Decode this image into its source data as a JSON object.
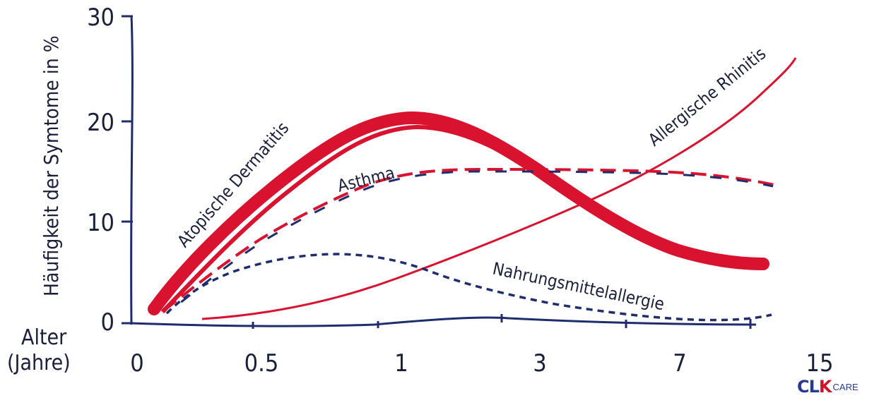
{
  "chart_data": {
    "type": "line",
    "ylabel": "Häufigkeit der Symtome in %",
    "xlabel": "Alter (Jahre)",
    "xlabel_line1": "Alter",
    "xlabel_line2": "(Jahre)",
    "ylim": [
      0,
      30
    ],
    "yticks": [
      "0",
      "10",
      "20",
      "30"
    ],
    "x_tick_labels": [
      "0",
      "0.5",
      "1",
      "3",
      "7",
      "15"
    ],
    "grid": false,
    "series": [
      {
        "name": "Atopische Dermatitis",
        "color": "#d9122f",
        "style": "thick",
        "points": [
          [
            0.14,
            1.0
          ],
          [
            0.3,
            6.0
          ],
          [
            0.5,
            12.0
          ],
          [
            0.7,
            16.8
          ],
          [
            0.9,
            19.2
          ],
          [
            1.0,
            19.8
          ],
          [
            1.15,
            19.7
          ],
          [
            1.4,
            18.6
          ],
          [
            2.0,
            15.8
          ],
          [
            3.0,
            13.0
          ],
          [
            4.5,
            10.0
          ],
          [
            7.0,
            7.0
          ],
          [
            10.0,
            6.5
          ],
          [
            13.0,
            5.8
          ]
        ]
      },
      {
        "name": "Asthma",
        "color": "#d9122f",
        "color2": "#1f2d6e",
        "style": "dashed",
        "points": [
          [
            0.2,
            1.0
          ],
          [
            0.4,
            5.0
          ],
          [
            0.6,
            9.5
          ],
          [
            0.8,
            13.0
          ],
          [
            1.0,
            14.3
          ],
          [
            1.5,
            15.0
          ],
          [
            2.5,
            15.0
          ],
          [
            4.0,
            14.8
          ],
          [
            6.0,
            14.8
          ],
          [
            9.0,
            14.5
          ],
          [
            12.0,
            14.2
          ],
          [
            14.0,
            13.8
          ]
        ]
      },
      {
        "name": "Allergische Rhinitis",
        "color": "#d9122f",
        "style": "thin",
        "points": [
          [
            0.4,
            0.3
          ],
          [
            0.6,
            0.8
          ],
          [
            0.8,
            1.6
          ],
          [
            1.0,
            3.0
          ],
          [
            1.6,
            5.2
          ],
          [
            2.5,
            8.0
          ],
          [
            3.5,
            11.0
          ],
          [
            5.0,
            14.0
          ],
          [
            7.0,
            17.0
          ],
          [
            9.0,
            20.0
          ],
          [
            12.0,
            24.0
          ],
          [
            14.0,
            26.5
          ]
        ]
      },
      {
        "name": "Nahrungsmittelallergie",
        "color": "#1f2d6e",
        "style": "dotted",
        "points": [
          [
            0.2,
            0.5
          ],
          [
            0.35,
            3.0
          ],
          [
            0.5,
            5.2
          ],
          [
            0.7,
            6.5
          ],
          [
            0.85,
            6.7
          ],
          [
            1.0,
            6.4
          ],
          [
            1.4,
            5.2
          ],
          [
            2.0,
            4.0
          ],
          [
            3.0,
            3.0
          ],
          [
            4.5,
            2.0
          ],
          [
            6.0,
            1.0
          ],
          [
            8.0,
            0.5
          ],
          [
            12.0,
            0.3
          ],
          [
            13.0,
            0.5
          ]
        ]
      }
    ]
  },
  "logo": {
    "main_c": "C",
    "main_l": "L",
    "main_k": "K",
    "care": "CARE"
  }
}
